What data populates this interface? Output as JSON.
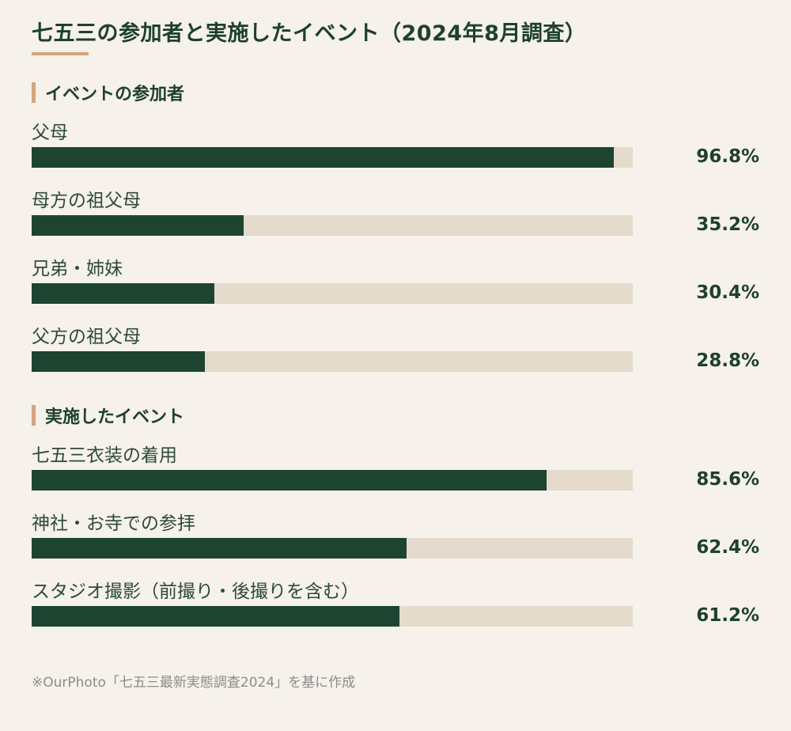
{
  "title": "七五三の参加者と実施したイベント（2024年8月調査）",
  "source": "※OurPhoto「七五三最新実態調査2024」を基に作成",
  "colors": {
    "background": "#f6f1ea",
    "bar_fill": "#1c4431",
    "bar_track": "#e4dbcc",
    "accent": "#d6a47c",
    "text": "#1d4030"
  },
  "chart_data": [
    {
      "type": "bar",
      "orientation": "horizontal",
      "title": "イベントの参加者",
      "categories": [
        "父母",
        "母方の祖父母",
        "兄弟・姉妹",
        "父方の祖父母"
      ],
      "values": [
        96.8,
        35.2,
        30.4,
        28.8
      ],
      "value_labels": [
        "96.8%",
        "35.2%",
        "30.4%",
        "28.8%"
      ],
      "unit": "%",
      "xlim": [
        0,
        100
      ]
    },
    {
      "type": "bar",
      "orientation": "horizontal",
      "title": "実施したイベント",
      "categories": [
        "七五三衣装の着用",
        "神社・お寺での参拝",
        "スタジオ撮影（前撮り・後撮りを含む）"
      ],
      "values": [
        85.6,
        62.4,
        61.2
      ],
      "value_labels": [
        "85.6%",
        "62.4%",
        "61.2%"
      ],
      "unit": "%",
      "xlim": [
        0,
        100
      ]
    }
  ]
}
